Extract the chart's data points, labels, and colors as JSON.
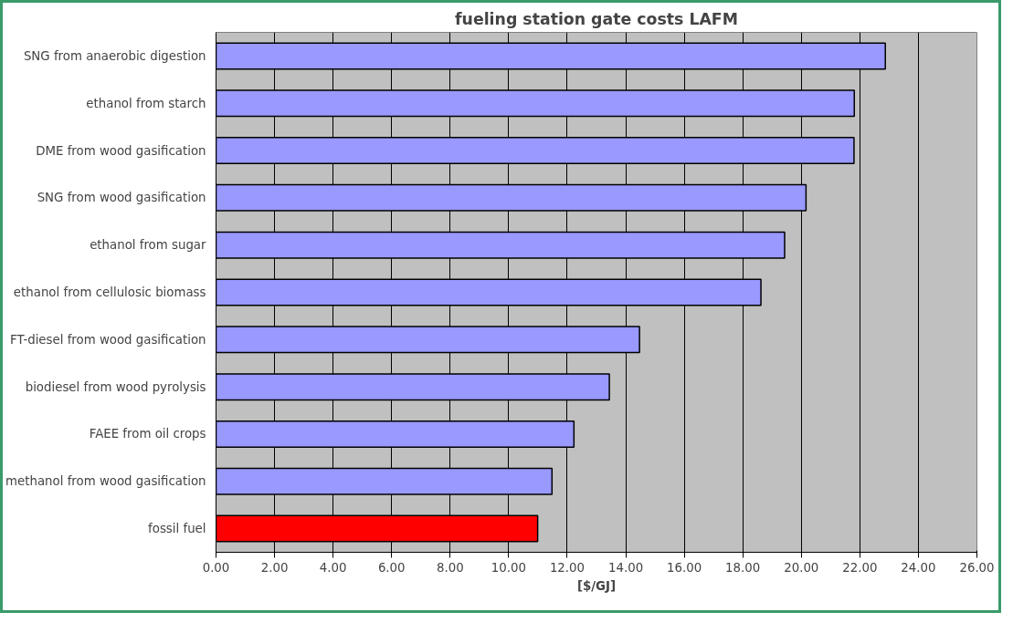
{
  "chart_data": {
    "type": "bar",
    "orientation": "horizontal",
    "title": "fueling station gate costs LAFM",
    "xlabel": "[$/GJ]",
    "categories": [
      "SNG from anaerobic digestion",
      "ethanol from starch",
      "DME from wood gasification",
      "SNG from wood gasification",
      "ethanol from sugar",
      "ethanol from cellulosic biomass",
      "FT-diesel from wood gasification",
      "biodiesel from wood pyrolysis",
      "FAEE from oil crops",
      "methanol from wood gasification",
      "fossil fuel"
    ],
    "values": [
      22.87,
      21.81,
      21.8,
      20.16,
      19.43,
      18.62,
      14.47,
      13.44,
      12.23,
      11.48,
      10.99
    ],
    "colors": [
      "#9999ff",
      "#9999ff",
      "#9999ff",
      "#9999ff",
      "#9999ff",
      "#9999ff",
      "#9999ff",
      "#9999ff",
      "#9999ff",
      "#9999ff",
      "#ff0000"
    ],
    "xlim": [
      0,
      26
    ],
    "xticks": [
      {
        "value": 0,
        "label": "0.00"
      },
      {
        "value": 2,
        "label": "2.00"
      },
      {
        "value": 4,
        "label": "4.00"
      },
      {
        "value": 6,
        "label": "6.00"
      },
      {
        "value": 8,
        "label": "8.00"
      },
      {
        "value": 10,
        "label": "10.00"
      },
      {
        "value": 12,
        "label": "12.00"
      },
      {
        "value": 14,
        "label": "14.00"
      },
      {
        "value": 16,
        "label": "16.00"
      },
      {
        "value": 18,
        "label": "18.00"
      },
      {
        "value": 20,
        "label": "20.00"
      },
      {
        "value": 22,
        "label": "22.00"
      },
      {
        "value": 24,
        "label": "24.00"
      },
      {
        "value": 26,
        "label": "26.00"
      }
    ],
    "grid": "x"
  }
}
